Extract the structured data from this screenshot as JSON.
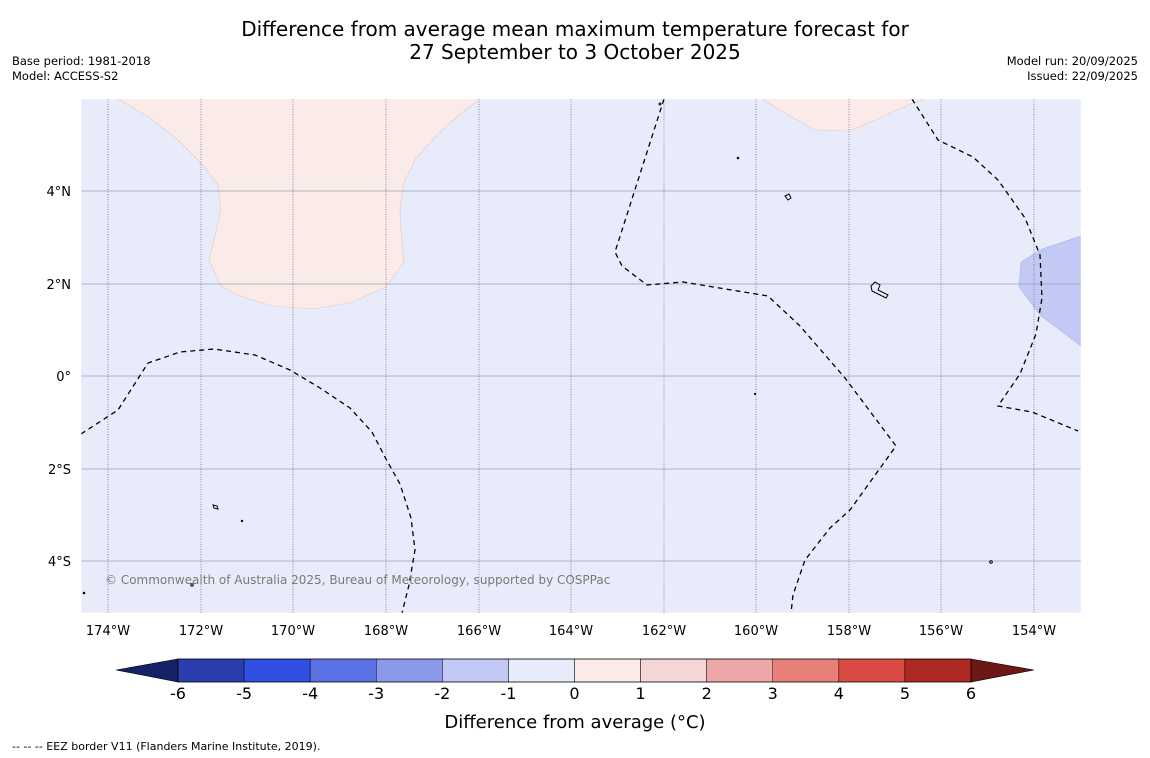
{
  "header": {
    "title_line1": "Difference from average mean maximum temperature forecast for",
    "title_line2": "27 September to 3 October 2025",
    "base_period": "Base period: 1981-2018",
    "model": "Model: ACCESS-S2",
    "model_run": "Model run: 20/09/2025",
    "issued": "Issued: 22/09/2025"
  },
  "map": {
    "copyright": "© Commonwealth of Australia 2025, Bureau of Meteorology, supported by COSPPac",
    "lat_labels": [
      "4°N",
      "2°N",
      "0°",
      "2°S",
      "4°S"
    ],
    "lon_labels": [
      "174°W",
      "172°W",
      "170°W",
      "168°W",
      "166°W",
      "164°W",
      "162°W",
      "160°W",
      "158°W",
      "156°W",
      "154°W"
    ],
    "background_color": "#e8ebfa",
    "warm_color": "#fbebe8",
    "cool_color": "#c2c9f4"
  },
  "colorbar": {
    "title": "Difference from average (°C)",
    "tick_labels": [
      "-6",
      "-5",
      "-4",
      "-3",
      "-2",
      "-1",
      "0",
      "1",
      "2",
      "3",
      "4",
      "5",
      "6"
    ],
    "colors": [
      "#162266",
      "#2a3fad",
      "#3050e3",
      "#5b72e4",
      "#8a99ea",
      "#c2c9f4",
      "#e8ebfa",
      "#fbebe8",
      "#f4d6d6",
      "#eea7a7",
      "#e68079",
      "#d94b43",
      "#ad2924",
      "#6e1816"
    ]
  },
  "footer": {
    "eez_note": "--  --  -- EEZ border V11 (Flanders Marine Institute, 2019)."
  }
}
